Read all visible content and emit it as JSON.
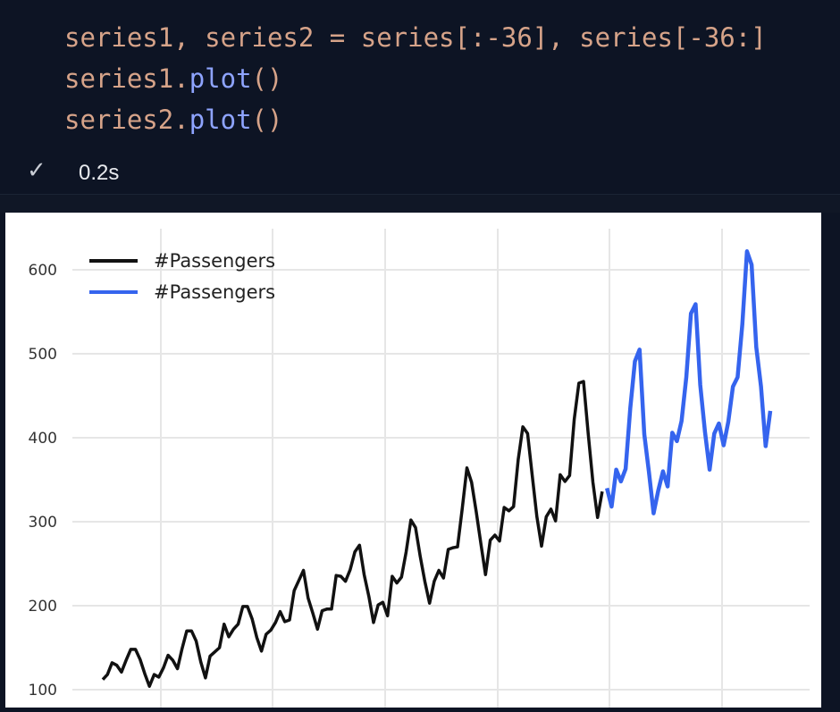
{
  "code": {
    "line1": "series1, series2 = series[:-36], series[-36:]",
    "line2_obj": "series1.",
    "line2_fn": "plot",
    "line2_end": "()",
    "line3_obj": "series2.",
    "line3_fn": "plot",
    "line3_end": "()"
  },
  "status": {
    "icon": "check-icon",
    "time": "0.2s"
  },
  "colors": {
    "background": "#0d1424",
    "series1": "#111111",
    "series2": "#3564ee"
  },
  "chart_data": {
    "type": "line",
    "title": "",
    "xlabel": "",
    "ylabel": "",
    "ylim": [
      96,
      650
    ],
    "yticks": [
      100,
      200,
      300,
      400,
      500,
      600
    ],
    "grid": true,
    "legend_position": "top-left",
    "legend": [
      "#Passengers",
      "#Passengers"
    ],
    "series": [
      {
        "name": "#Passengers",
        "color": "#111111",
        "values": [
          112,
          118,
          132,
          129,
          121,
          135,
          148,
          148,
          136,
          119,
          104,
          118,
          115,
          126,
          141,
          135,
          125,
          149,
          170,
          170,
          158,
          133,
          114,
          140,
          145,
          150,
          178,
          163,
          172,
          178,
          199,
          199,
          184,
          162,
          146,
          166,
          171,
          180,
          193,
          181,
          183,
          218,
          230,
          242,
          209,
          191,
          172,
          194,
          196,
          196,
          236,
          235,
          229,
          243,
          264,
          272,
          237,
          211,
          180,
          201,
          204,
          188,
          235,
          227,
          234,
          264,
          302,
          293,
          259,
          229,
          203,
          229,
          242,
          233,
          267,
          269,
          270,
          315,
          364,
          347,
          312,
          274,
          237,
          278,
          284,
          277,
          317,
          313,
          318,
          374,
          413,
          405,
          355,
          306,
          271,
          306,
          315,
          301,
          356,
          348,
          355,
          422,
          465,
          467,
          404,
          347,
          305,
          336
        ]
      },
      {
        "name": "#Passengers",
        "color": "#3564ee",
        "values": [
          340,
          318,
          362,
          348,
          363,
          435,
          491,
          505,
          404,
          359,
          310,
          337,
          360,
          342,
          406,
          396,
          420,
          472,
          548,
          559,
          463,
          407,
          362,
          405,
          417,
          391,
          419,
          461,
          472,
          535,
          622,
          606,
          508,
          461,
          390,
          432
        ]
      }
    ]
  }
}
